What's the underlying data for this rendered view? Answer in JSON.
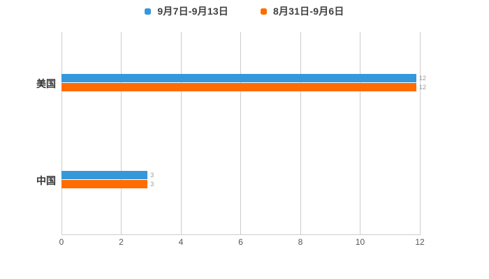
{
  "chart_data": {
    "type": "bar",
    "orientation": "horizontal",
    "title": "",
    "categories": [
      "美国",
      "中国"
    ],
    "series": [
      {
        "name": "9月7日-9月13日",
        "color": "#3498DB",
        "values": [
          12,
          3
        ]
      },
      {
        "name": "8月31日-9月6日",
        "color": "#FF6D00",
        "values": [
          12,
          3
        ]
      }
    ],
    "xlim": [
      0,
      12
    ],
    "xticks": [
      "0",
      "2",
      "4",
      "6",
      "8",
      "10",
      "12"
    ],
    "grid": true,
    "legend_position": "top",
    "bar_labels_shown": true
  },
  "colors": {
    "background": "#ffffff",
    "grid": "#cccccc",
    "axis": "#cccccc",
    "tick_label": "#555555",
    "category_label": "#333333",
    "legend_label": "#3f3f3f",
    "series_blue": "#3498DB",
    "series_orange": "#FF6D00",
    "bar_value_label": "#888888"
  }
}
